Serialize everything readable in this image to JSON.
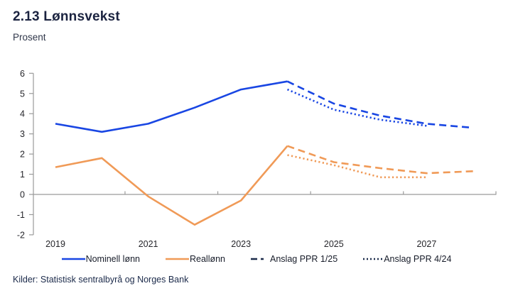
{
  "header": {
    "title": "2.13 Lønnsvekst",
    "subtitle": "Prosent"
  },
  "colors": {
    "blue": "#1946e3",
    "orange": "#f09a57",
    "navy": "#1b2a4a",
    "axis": "#9a9a9a",
    "tick_text": "#26262b"
  },
  "chart_data": {
    "type": "line",
    "title": "2.13 Lønnsvekst",
    "ylabel": "Prosent",
    "ylim": [
      -2,
      6
    ],
    "ytick_step": 1,
    "x_axis": {
      "tick_years": [
        2019,
        2021,
        2023,
        2025,
        2027
      ],
      "boundary_tick_years": [
        2021,
        2023,
        2025,
        2027,
        2029
      ],
      "range": [
        2018.5,
        2028.6
      ]
    },
    "grid": "zero-line-only",
    "legend_position": "bottom",
    "series": [
      {
        "name": "Nominell lønn",
        "color": "blue",
        "dash": "solid",
        "x": [
          2019,
          2020,
          2021,
          2022,
          2023,
          2024
        ],
        "values": [
          3.5,
          3.1,
          3.5,
          4.3,
          5.2,
          5.6
        ]
      },
      {
        "name": "Reallønn",
        "color": "orange",
        "dash": "solid",
        "x": [
          2019,
          2020,
          2021,
          2022,
          2023,
          2024
        ],
        "values": [
          1.35,
          1.8,
          -0.1,
          -1.5,
          -0.3,
          2.4
        ]
      },
      {
        "name": "Anslag PPR 1/25 (nominell lønn)",
        "color": "blue",
        "dash": "dashed",
        "x": [
          2024,
          2025,
          2026,
          2027,
          2028
        ],
        "values": [
          5.6,
          4.5,
          3.9,
          3.5,
          3.3
        ]
      },
      {
        "name": "Anslag PPR 1/25 (reallønn)",
        "color": "orange",
        "dash": "dashed",
        "x": [
          2024,
          2025,
          2026,
          2027,
          2028
        ],
        "values": [
          2.4,
          1.6,
          1.3,
          1.05,
          1.15
        ]
      },
      {
        "name": "Anslag PPR 4/24 (nominell lønn)",
        "color": "blue",
        "dash": "dotted",
        "x": [
          2024,
          2025,
          2026,
          2027
        ],
        "values": [
          5.2,
          4.2,
          3.7,
          3.4
        ]
      },
      {
        "name": "Anslag PPR 4/24 (reallønn)",
        "color": "orange",
        "dash": "dotted",
        "x": [
          2024,
          2025,
          2026,
          2027
        ],
        "values": [
          1.95,
          1.45,
          0.85,
          0.85
        ]
      }
    ]
  },
  "legend": {
    "items": [
      {
        "label": "Nominell lønn",
        "swatch": "solid:blue"
      },
      {
        "label": "Reallønn",
        "swatch": "solid:orange"
      },
      {
        "label": "Anslag PPR 1/25",
        "swatch": "dashed:navy"
      },
      {
        "label": "Anslag PPR 4/24",
        "swatch": "dotted:navy"
      }
    ]
  },
  "footer": {
    "sources": "Kilder: Statistisk sentralbyrå og Norges Bank"
  }
}
